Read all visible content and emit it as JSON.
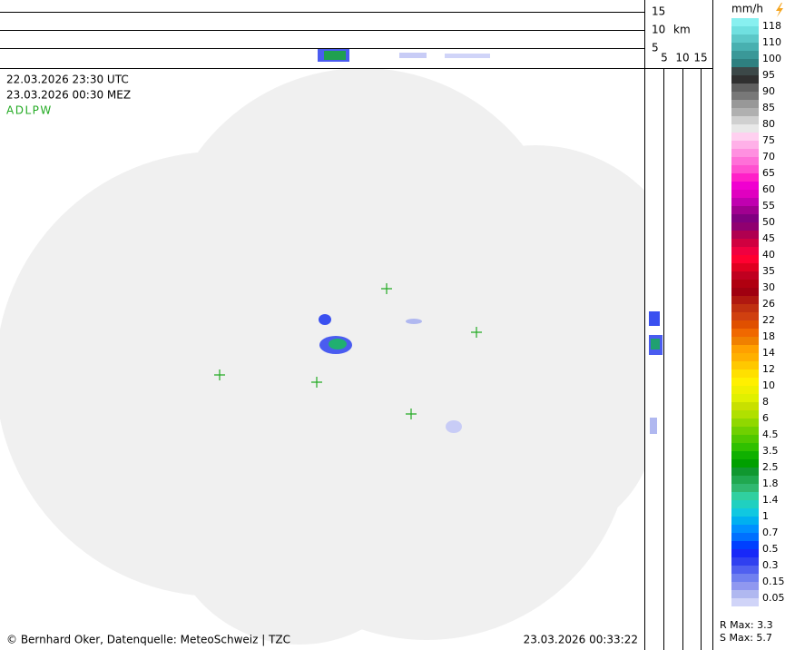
{
  "header": {
    "time_utc": "22.03.2026 23:30 UTC",
    "time_local": "23.03.2026 00:30 MEZ",
    "product": "ADLPW"
  },
  "top_profile": {
    "labels": [
      "15",
      "10",
      "5"
    ],
    "unit": "km"
  },
  "side_profile": {
    "labels": [
      "5",
      "10",
      "15"
    ]
  },
  "legend": {
    "unit": "mm/h",
    "items": [
      {
        "label": "118",
        "colors": [
          "#88f0f0",
          "#70e0e0"
        ]
      },
      {
        "label": "110",
        "colors": [
          "#5cc8c8",
          "#48b0b0"
        ]
      },
      {
        "label": "100",
        "colors": [
          "#3a9898",
          "#2e8080"
        ]
      },
      {
        "label": "95",
        "colors": [
          "#3c4848",
          "#303030"
        ]
      },
      {
        "label": "90",
        "colors": [
          "#606060",
          "#787878"
        ]
      },
      {
        "label": "85",
        "colors": [
          "#989898",
          "#b0b0b0"
        ]
      },
      {
        "label": "80",
        "colors": [
          "#d0d0d0",
          "#e8e8e8"
        ]
      },
      {
        "label": "75",
        "colors": [
          "#ffd0f0",
          "#ffb0e8"
        ]
      },
      {
        "label": "70",
        "colors": [
          "#ff90e0",
          "#ff70d8"
        ]
      },
      {
        "label": "65",
        "colors": [
          "#ff50d0",
          "#ff20c8"
        ]
      },
      {
        "label": "60",
        "colors": [
          "#f000d0",
          "#e000c0"
        ]
      },
      {
        "label": "55",
        "colors": [
          "#c000b0",
          "#a00090"
        ]
      },
      {
        "label": "50",
        "colors": [
          "#800080",
          "#900070"
        ]
      },
      {
        "label": "45",
        "colors": [
          "#b00050",
          "#d00040"
        ]
      },
      {
        "label": "40",
        "colors": [
          "#f00040",
          "#ff0030"
        ]
      },
      {
        "label": "35",
        "colors": [
          "#e00020",
          "#c00020"
        ]
      },
      {
        "label": "30",
        "colors": [
          "#b00010",
          "#a00010"
        ]
      },
      {
        "label": "26",
        "colors": [
          "#b01810",
          "#c03010"
        ]
      },
      {
        "label": "22",
        "colors": [
          "#d04010",
          "#e05000"
        ]
      },
      {
        "label": "18",
        "colors": [
          "#f06800",
          "#f08000"
        ]
      },
      {
        "label": "14",
        "colors": [
          "#ffa000",
          "#ffb000"
        ]
      },
      {
        "label": "12",
        "colors": [
          "#ffc800",
          "#ffe000"
        ]
      },
      {
        "label": "10",
        "colors": [
          "#fff000",
          "#f0f000"
        ]
      },
      {
        "label": "8",
        "colors": [
          "#e0f000",
          "#c8e000"
        ]
      },
      {
        "label": "6",
        "colors": [
          "#b0e000",
          "#90d800"
        ]
      },
      {
        "label": "4.5",
        "colors": [
          "#70d000",
          "#50c800"
        ]
      },
      {
        "label": "3.5",
        "colors": [
          "#30c000",
          "#10b000"
        ]
      },
      {
        "label": "2.5",
        "colors": [
          "#00a000",
          "#109830"
        ]
      },
      {
        "label": "1.8",
        "colors": [
          "#20a850",
          "#30b870"
        ]
      },
      {
        "label": "1.4",
        "colors": [
          "#30d0a0",
          "#20d0c0"
        ]
      },
      {
        "label": "1",
        "colors": [
          "#10c8e0",
          "#00b0f0"
        ]
      },
      {
        "label": "0.7",
        "colors": [
          "#0090ff",
          "#0070ff"
        ]
      },
      {
        "label": "0.5",
        "colors": [
          "#0040ff",
          "#1828f8"
        ]
      },
      {
        "label": "0.3",
        "colors": [
          "#3040f0",
          "#5060f0"
        ]
      },
      {
        "label": "0.15",
        "colors": [
          "#7080f0",
          "#9098f0"
        ]
      },
      {
        "label": "0.05",
        "colors": [
          "#b0b8f0",
          "#d0d4f8"
        ]
      }
    ]
  },
  "stats": {
    "r_max": "R Max: 3.3",
    "s_max": "S Max: 5.7"
  },
  "footer": {
    "credit": "© Bernhard Oker, Datenquelle: MeteoSchweiz | TZC",
    "timestamp": "23.03.2026 00:33:22"
  }
}
